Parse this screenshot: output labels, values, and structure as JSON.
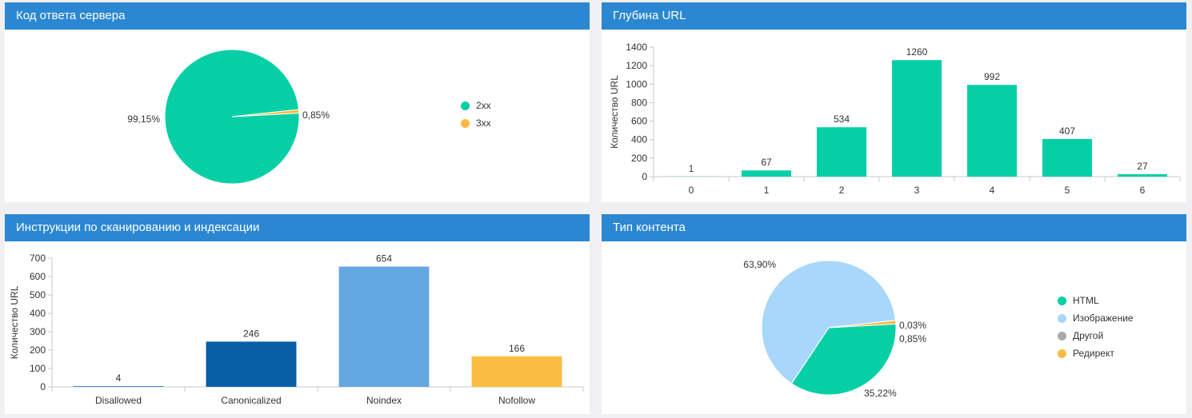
{
  "panels": {
    "server": {
      "title": "Код ответа сервера"
    },
    "depth": {
      "title": "Глубина URL"
    },
    "instr": {
      "title": "Инструкции по сканированию и индексации"
    },
    "content": {
      "title": "Тип контента"
    }
  },
  "chart_data": [
    {
      "type": "pie",
      "title": "Код ответа сервера",
      "labels": [
        "2xx",
        "3xx"
      ],
      "values": [
        99.15,
        0.85
      ],
      "value_labels": [
        "99,15%",
        "0,85%"
      ],
      "colors": [
        "#06cfa5",
        "#f9bb41"
      ],
      "legend": "right"
    },
    {
      "type": "bar",
      "title": "Глубина URL",
      "categories": [
        "0",
        "1",
        "2",
        "3",
        "4",
        "5",
        "6"
      ],
      "values": [
        1,
        67,
        534,
        1260,
        992,
        407,
        27
      ],
      "ylabel": "Количество URL",
      "ylim": [
        0,
        1400
      ],
      "yticks": [
        0,
        200,
        400,
        600,
        800,
        1000,
        1200,
        1400
      ],
      "colors": [
        "#06cfa5"
      ]
    },
    {
      "type": "bar",
      "title": "Инструкции по сканированию и индексации",
      "categories": [
        "Disallowed",
        "Canonicalized",
        "Noindex",
        "Nofollow"
      ],
      "values": [
        4,
        246,
        654,
        166
      ],
      "ylabel": "Количество URL",
      "ylim": [
        0,
        700
      ],
      "yticks": [
        0,
        100,
        200,
        300,
        400,
        500,
        600,
        700
      ],
      "colors": [
        "#2b87d1",
        "#0a5ea8",
        "#62a6e2",
        "#fbbd41"
      ]
    },
    {
      "type": "pie",
      "title": "Тип контента",
      "labels": [
        "HTML",
        "Изображение",
        "Другой",
        "Редирект"
      ],
      "values": [
        35.22,
        63.9,
        0.03,
        0.85
      ],
      "value_labels": [
        "35,22%",
        "63,90%",
        "0,03%",
        "0,85%"
      ],
      "colors": [
        "#06cfa5",
        "#a8d7fb",
        "#a9a9a9",
        "#f9bb41"
      ],
      "legend": "right"
    }
  ]
}
